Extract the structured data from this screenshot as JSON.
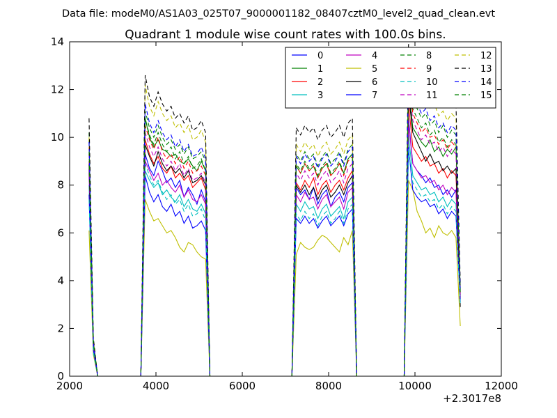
{
  "chart_data": {
    "type": "line",
    "suptitle": "Data file: modeM0/AS1A03_025T07_9000001182_08407cztM0_level2_quad_clean.evt",
    "title": "Quadrant 1 module wise count rates with 100.0s bins.",
    "xlabel": "",
    "ylabel": "",
    "x_offset_label": "+2.3017e8",
    "xlim": [
      2000,
      12000
    ],
    "ylim": [
      0,
      14
    ],
    "xticks": [
      2000,
      4000,
      6000,
      8000,
      10000,
      12000
    ],
    "yticks": [
      0,
      2,
      4,
      6,
      8,
      10,
      12,
      14
    ],
    "x": [
      2450,
      2550,
      2650,
      3650,
      3750,
      3850,
      3950,
      4050,
      4150,
      4250,
      4350,
      4450,
      4550,
      4650,
      4750,
      4850,
      4950,
      5050,
      5150,
      5250,
      7050,
      7150,
      7250,
      7350,
      7450,
      7550,
      7650,
      7750,
      7850,
      7950,
      8050,
      8150,
      8250,
      8350,
      8450,
      8550,
      8650,
      8750,
      9750,
      9850,
      9950,
      10050,
      10150,
      10250,
      10350,
      10450,
      10550,
      10650,
      10750,
      10850,
      10950,
      11050
    ],
    "series": [
      {
        "name": "0",
        "color": "#0000ff",
        "dash": "solid",
        "values": [
          8.7,
          1.2,
          0,
          0,
          9.3,
          8.7,
          8.4,
          9.0,
          8.6,
          8.1,
          8.3,
          7.9,
          8.2,
          7.5,
          7.9,
          7.6,
          7.2,
          7.8,
          7.3,
          0,
          0,
          0,
          7.9,
          7.6,
          7.8,
          7.4,
          7.9,
          7.2,
          7.6,
          7.8,
          7.1,
          7.5,
          7.7,
          7.3,
          7.9,
          8.1,
          0,
          0,
          0,
          10.8,
          8.9,
          8.6,
          8.4,
          8.1,
          8.3,
          7.9,
          8.0,
          7.6,
          7.8,
          7.5,
          7.8,
          3.8
        ]
      },
      {
        "name": "1",
        "color": "#008000",
        "dash": "solid",
        "values": [
          9.9,
          1.4,
          0,
          0,
          10.8,
          10.0,
          9.6,
          9.9,
          9.5,
          9.4,
          9.2,
          9.3,
          9.0,
          8.9,
          9.1,
          8.8,
          8.6,
          9.0,
          8.6,
          0,
          0,
          0,
          8.8,
          8.5,
          8.9,
          8.6,
          8.8,
          8.3,
          8.7,
          8.9,
          8.4,
          8.6,
          8.9,
          8.5,
          9.1,
          9.3,
          0,
          0,
          0,
          12.1,
          10.4,
          10.1,
          9.8,
          9.6,
          9.9,
          9.4,
          9.6,
          9.2,
          9.5,
          9.3,
          9.6,
          3.4
        ]
      },
      {
        "name": "2",
        "color": "#ff0000",
        "dash": "solid",
        "values": [
          9.0,
          1.3,
          0,
          0,
          9.9,
          9.3,
          8.9,
          9.2,
          8.7,
          8.5,
          8.8,
          8.3,
          8.5,
          8.2,
          8.4,
          7.9,
          8.1,
          8.3,
          7.8,
          0,
          0,
          0,
          8.1,
          7.8,
          8.2,
          7.9,
          8.3,
          7.6,
          8.0,
          8.2,
          7.7,
          8.0,
          8.2,
          7.8,
          8.3,
          8.6,
          0,
          0,
          0,
          11.4,
          9.6,
          9.3,
          9.0,
          9.2,
          8.8,
          8.9,
          8.5,
          8.7,
          8.3,
          8.6,
          8.4,
          3.5
        ]
      },
      {
        "name": "3",
        "color": "#00bfbf",
        "dash": "solid",
        "values": [
          8.0,
          1.1,
          0,
          0,
          8.6,
          8.2,
          7.9,
          8.1,
          7.6,
          7.8,
          7.5,
          7.3,
          7.6,
          7.1,
          7.4,
          7.0,
          6.9,
          7.2,
          6.8,
          0,
          0,
          0,
          7.2,
          6.9,
          7.3,
          7.0,
          7.1,
          6.6,
          7.0,
          7.2,
          6.7,
          6.9,
          7.1,
          6.6,
          7.3,
          7.5,
          0,
          0,
          0,
          10.1,
          8.4,
          8.1,
          7.8,
          7.9,
          7.6,
          7.7,
          7.3,
          7.5,
          7.1,
          7.4,
          7.2,
          3.2
        ]
      },
      {
        "name": "4",
        "color": "#bf00bf",
        "dash": "solid",
        "values": [
          8.5,
          1.2,
          0,
          0,
          9.0,
          8.6,
          8.2,
          8.5,
          8.0,
          8.2,
          7.9,
          7.7,
          8.0,
          7.5,
          7.8,
          7.4,
          7.3,
          7.6,
          7.2,
          0,
          0,
          0,
          7.6,
          7.3,
          7.7,
          7.4,
          7.5,
          7.0,
          7.4,
          7.6,
          7.1,
          7.3,
          7.5,
          7.0,
          7.7,
          7.9,
          0,
          0,
          0,
          10.6,
          8.9,
          8.6,
          8.3,
          8.4,
          8.1,
          8.2,
          7.8,
          8.0,
          7.6,
          7.9,
          7.7,
          3.3
        ]
      },
      {
        "name": "5",
        "color": "#bfbf00",
        "dash": "solid",
        "values": [
          6.1,
          0.9,
          0,
          0,
          7.4,
          6.9,
          6.5,
          6.6,
          6.3,
          6.0,
          6.1,
          5.8,
          5.4,
          5.2,
          5.6,
          5.5,
          5.2,
          5.0,
          4.9,
          0,
          0,
          0,
          5.1,
          5.6,
          5.4,
          5.3,
          5.4,
          5.7,
          5.9,
          5.8,
          5.6,
          5.4,
          5.2,
          5.8,
          5.5,
          6.1,
          0,
          0,
          0,
          8.2,
          7.8,
          6.9,
          6.5,
          6.0,
          6.2,
          5.8,
          6.3,
          6.0,
          5.9,
          6.1,
          5.8,
          2.1
        ]
      },
      {
        "name": "6",
        "color": "#000000",
        "dash": "solid",
        "values": [
          8.9,
          1.3,
          0,
          0,
          9.7,
          9.2,
          8.8,
          9.4,
          8.9,
          8.6,
          8.8,
          8.5,
          8.7,
          8.3,
          8.6,
          8.1,
          8.2,
          8.4,
          8.0,
          0,
          0,
          0,
          8.0,
          7.7,
          8.0,
          7.6,
          7.9,
          7.4,
          7.8,
          8.0,
          7.5,
          7.7,
          8.0,
          7.6,
          8.1,
          8.4,
          0,
          0,
          0,
          11.8,
          10.2,
          9.8,
          9.4,
          9.0,
          9.3,
          8.9,
          9.0,
          8.6,
          8.8,
          8.5,
          8.7,
          2.9
        ]
      },
      {
        "name": "7",
        "color": "#0000ff",
        "dash": "solid",
        "values": [
          7.6,
          1.1,
          0,
          0,
          8.4,
          7.7,
          7.3,
          7.6,
          7.1,
          6.9,
          7.2,
          6.7,
          6.9,
          6.4,
          6.7,
          6.2,
          6.3,
          6.5,
          6.1,
          0,
          0,
          0,
          6.6,
          6.4,
          6.7,
          6.4,
          6.6,
          6.2,
          6.5,
          6.7,
          6.3,
          6.5,
          6.7,
          6.3,
          6.8,
          7.0,
          0,
          0,
          0,
          9.6,
          7.8,
          7.5,
          7.3,
          7.4,
          7.1,
          7.2,
          6.8,
          7.0,
          6.6,
          6.9,
          6.7,
          3.1
        ]
      },
      {
        "name": "8",
        "color": "#008000",
        "dash": "dashed",
        "values": [
          10.2,
          1.5,
          0,
          0,
          11.1,
          10.4,
          10.0,
          10.5,
          10.0,
          9.7,
          9.9,
          9.5,
          9.7,
          9.3,
          9.6,
          9.1,
          9.2,
          9.4,
          9.0,
          0,
          0,
          0,
          9.3,
          9.0,
          9.4,
          9.1,
          9.3,
          8.8,
          9.2,
          9.4,
          8.9,
          9.1,
          9.4,
          8.9,
          9.5,
          9.7,
          0,
          0,
          0,
          13.4,
          11.6,
          11.2,
          10.8,
          11.0,
          10.5,
          10.7,
          10.2,
          10.5,
          10.0,
          10.3,
          10.1,
          3.6
        ]
      },
      {
        "name": "9",
        "color": "#ff0000",
        "dash": "dashed",
        "values": [
          9.6,
          1.4,
          0,
          0,
          10.5,
          9.9,
          9.5,
          10.0,
          9.4,
          9.1,
          9.3,
          8.9,
          9.2,
          8.7,
          9.0,
          8.5,
          8.6,
          8.8,
          8.4,
          0,
          0,
          0,
          8.8,
          8.5,
          8.9,
          8.6,
          8.8,
          8.3,
          8.7,
          8.9,
          8.4,
          8.6,
          8.9,
          8.4,
          9.0,
          9.2,
          0,
          0,
          0,
          12.8,
          11.0,
          10.6,
          10.2,
          10.4,
          10.0,
          10.1,
          9.7,
          9.9,
          9.5,
          9.8,
          9.6,
          3.5
        ]
      },
      {
        "name": "10",
        "color": "#00bfbf",
        "dash": "dashed",
        "values": [
          7.4,
          1.0,
          0,
          0,
          8.9,
          8.4,
          8.0,
          8.2,
          7.7,
          7.4,
          7.6,
          7.2,
          7.4,
          6.9,
          7.2,
          6.7,
          6.8,
          7.0,
          6.5,
          0,
          0,
          0,
          6.8,
          6.5,
          6.9,
          6.6,
          6.8,
          6.3,
          6.7,
          6.9,
          6.4,
          6.6,
          6.9,
          6.4,
          7.0,
          7.2,
          0,
          0,
          0,
          9.5,
          8.1,
          7.8,
          7.5,
          7.6,
          7.3,
          7.4,
          7.0,
          7.2,
          6.8,
          7.1,
          6.9,
          3.0
        ]
      },
      {
        "name": "11",
        "color": "#bf00bf",
        "dash": "dashed",
        "values": [
          9.3,
          1.3,
          0,
          0,
          10.2,
          9.6,
          9.2,
          9.6,
          9.1,
          8.8,
          9.0,
          8.6,
          8.9,
          8.4,
          8.7,
          8.2,
          8.3,
          8.5,
          8.1,
          0,
          0,
          0,
          8.5,
          8.2,
          8.6,
          8.3,
          8.5,
          8.0,
          8.4,
          8.6,
          8.1,
          8.3,
          8.6,
          8.1,
          8.7,
          8.9,
          0,
          0,
          0,
          12.4,
          10.7,
          10.3,
          9.9,
          10.1,
          9.7,
          9.8,
          9.4,
          9.6,
          9.2,
          9.5,
          9.3,
          3.4
        ]
      },
      {
        "name": "12",
        "color": "#bfbf00",
        "dash": "dashed",
        "values": [
          10.0,
          1.5,
          0,
          0,
          12.2,
          11.3,
          10.9,
          11.5,
          11.0,
          10.7,
          10.9,
          10.4,
          10.6,
          10.2,
          10.5,
          9.9,
          10.0,
          10.3,
          9.8,
          0,
          0,
          0,
          9.7,
          9.4,
          9.8,
          9.5,
          9.7,
          9.2,
          9.6,
          9.8,
          9.3,
          9.5,
          9.8,
          9.3,
          9.9,
          10.1,
          0,
          0,
          0,
          13.2,
          12.3,
          11.9,
          11.5,
          11.7,
          11.2,
          11.4,
          10.9,
          11.1,
          10.7,
          11.0,
          10.8,
          3.7
        ]
      },
      {
        "name": "13",
        "color": "#000000",
        "dash": "dashed",
        "values": [
          10.8,
          1.6,
          0,
          0,
          12.6,
          11.7,
          11.3,
          11.9,
          11.4,
          11.1,
          11.3,
          10.8,
          11.0,
          10.6,
          10.9,
          10.3,
          10.4,
          10.7,
          10.2,
          0,
          0,
          0,
          10.4,
          10.1,
          10.5,
          10.2,
          10.4,
          9.9,
          10.3,
          10.5,
          10.0,
          10.2,
          10.5,
          10.0,
          10.6,
          10.8,
          0,
          0,
          0,
          13.9,
          12.9,
          12.5,
          12.1,
          12.3,
          11.8,
          12.0,
          11.5,
          11.7,
          11.3,
          11.6,
          11.4,
          3.9
        ]
      },
      {
        "name": "14",
        "color": "#0000ff",
        "dash": "dashed",
        "values": [
          9.8,
          1.4,
          0,
          0,
          11.4,
          10.6,
          10.2,
          10.7,
          10.2,
          9.9,
          10.1,
          9.6,
          9.9,
          9.4,
          9.7,
          9.2,
          9.3,
          9.6,
          9.1,
          0,
          0,
          0,
          9.2,
          8.9,
          9.3,
          9.0,
          9.2,
          8.7,
          9.1,
          9.3,
          8.8,
          9.0,
          9.3,
          8.8,
          9.4,
          9.6,
          0,
          0,
          0,
          13.0,
          11.8,
          11.4,
          11.0,
          11.2,
          10.7,
          10.9,
          10.4,
          10.6,
          10.2,
          10.5,
          10.3,
          3.6
        ]
      },
      {
        "name": "15",
        "color": "#008000",
        "dash": "dashed",
        "values": [
          9.4,
          1.4,
          0,
          0,
          10.8,
          10.1,
          9.7,
          10.2,
          9.7,
          9.4,
          9.6,
          9.1,
          9.4,
          8.9,
          9.2,
          8.7,
          8.8,
          9.1,
          8.6,
          0,
          0,
          0,
          8.9,
          8.6,
          9.0,
          8.7,
          8.9,
          8.4,
          8.8,
          9.0,
          8.5,
          8.7,
          9.0,
          8.5,
          9.1,
          9.3,
          0,
          0,
          0,
          12.6,
          11.2,
          10.8,
          10.4,
          10.6,
          10.1,
          10.3,
          9.8,
          10.0,
          9.6,
          9.9,
          9.7,
          3.5
        ]
      }
    ],
    "legend": {
      "position": "top-right",
      "ncol": 4
    }
  }
}
